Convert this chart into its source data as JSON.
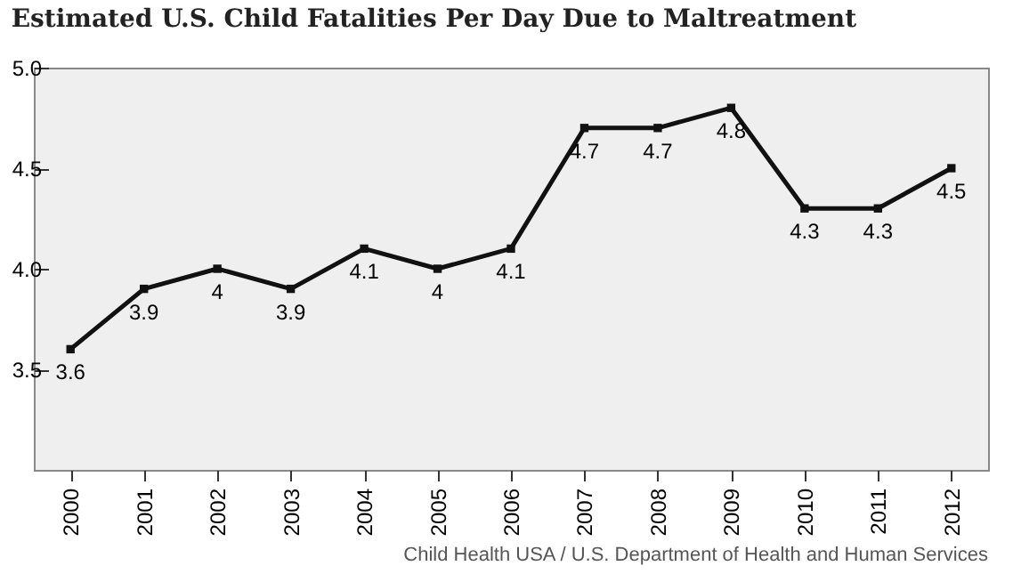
{
  "chart_data": {
    "type": "line",
    "title": "Estimated U.S. Child Fatalities Per Day Due to Maltreatment",
    "categories": [
      "2000",
      "2001",
      "2002",
      "2003",
      "2004",
      "2005",
      "2006",
      "2007",
      "2008",
      "2009",
      "2010",
      "2011",
      "2012"
    ],
    "series": [
      {
        "color": "#111111",
        "values": [
          3.6,
          3.9,
          4,
          3.9,
          4.1,
          4,
          4.1,
          4.7,
          4.7,
          4.8,
          4.3,
          4.3,
          4.5
        ]
      }
    ],
    "ylim": [
      3,
      5
    ],
    "yticks": [
      {
        "value": 3.5,
        "label": "3.5"
      },
      {
        "value": 4,
        "label": "4.0"
      },
      {
        "value": 4.5,
        "label": "4.5"
      },
      {
        "value": 5,
        "label": "5.0"
      }
    ],
    "data_labels": true,
    "marker": "square",
    "line_style": "solid",
    "grid": false,
    "legend": false,
    "annotations": [
      "Child Health USA / U.S. Department of Health and Human Services"
    ]
  }
}
